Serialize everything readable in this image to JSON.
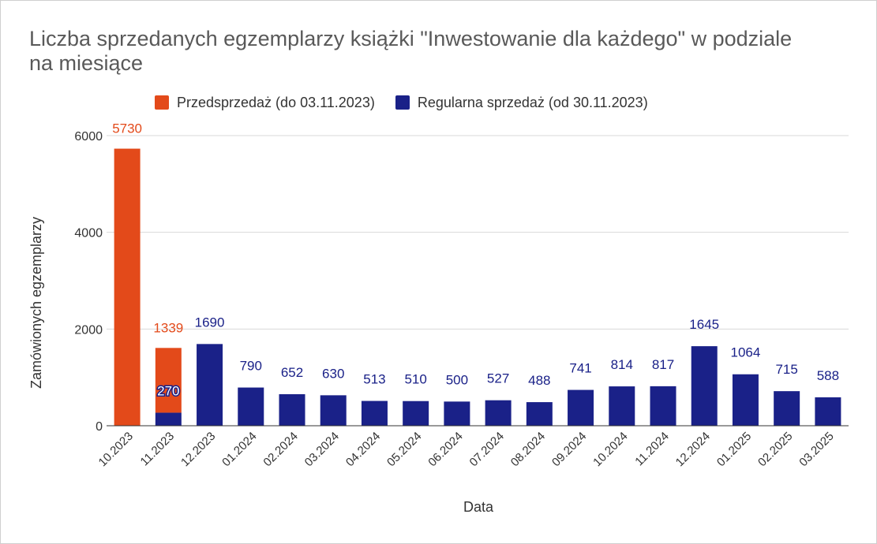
{
  "chart_data": {
    "type": "bar",
    "stacked": true,
    "title": "Liczba sprzedanych egzemplarzy książki \"Inwestowanie dla każdego\" w podziale na miesiące",
    "xlabel": "Data",
    "ylabel": "Zamówionych egzemplarzy",
    "ylim": [
      0,
      6000
    ],
    "yticks": [
      0,
      2000,
      4000,
      6000
    ],
    "grid": true,
    "legend_position": "top",
    "categories": [
      "10.2023",
      "11.2023",
      "12.2023",
      "01.2024",
      "02.2024",
      "03.2024",
      "04.2024",
      "05.2024",
      "06.2024",
      "07.2024",
      "08.2024",
      "09.2024",
      "10.2024",
      "11.2024",
      "12.2024",
      "01.2025",
      "02.2025",
      "03.2025"
    ],
    "series": [
      {
        "name": "Regularna sprzedaż (od 30.11.2023)",
        "color": "#1a2188",
        "values": [
          0,
          270,
          1690,
          790,
          652,
          630,
          513,
          510,
          500,
          527,
          488,
          741,
          814,
          817,
          1645,
          1064,
          715,
          588
        ],
        "labels": [
          "",
          "270",
          "1690",
          "790",
          "652",
          "630",
          "513",
          "510",
          "500",
          "527",
          "488",
          "741",
          "814",
          "817",
          "1645",
          "1064",
          "715",
          "588"
        ]
      },
      {
        "name": "Przedsprzedaż (do 03.11.2023)",
        "color": "#e34a1a",
        "values": [
          5730,
          1339,
          0,
          0,
          0,
          0,
          0,
          0,
          0,
          0,
          0,
          0,
          0,
          0,
          0,
          0,
          0,
          0
        ],
        "labels": [
          "5730",
          "1339",
          "",
          "",
          "",
          "",
          "",
          "",
          "",
          "",
          "",
          "",
          "",
          "",
          "",
          "",
          "",
          ""
        ]
      }
    ]
  },
  "legend": {
    "presale_label": "Przedsprzedaż (do 03.11.2023)",
    "regular_label": "Regularna sprzedaż (od 30.11.2023)",
    "presale_color": "#e34a1a",
    "regular_color": "#1a2188"
  }
}
